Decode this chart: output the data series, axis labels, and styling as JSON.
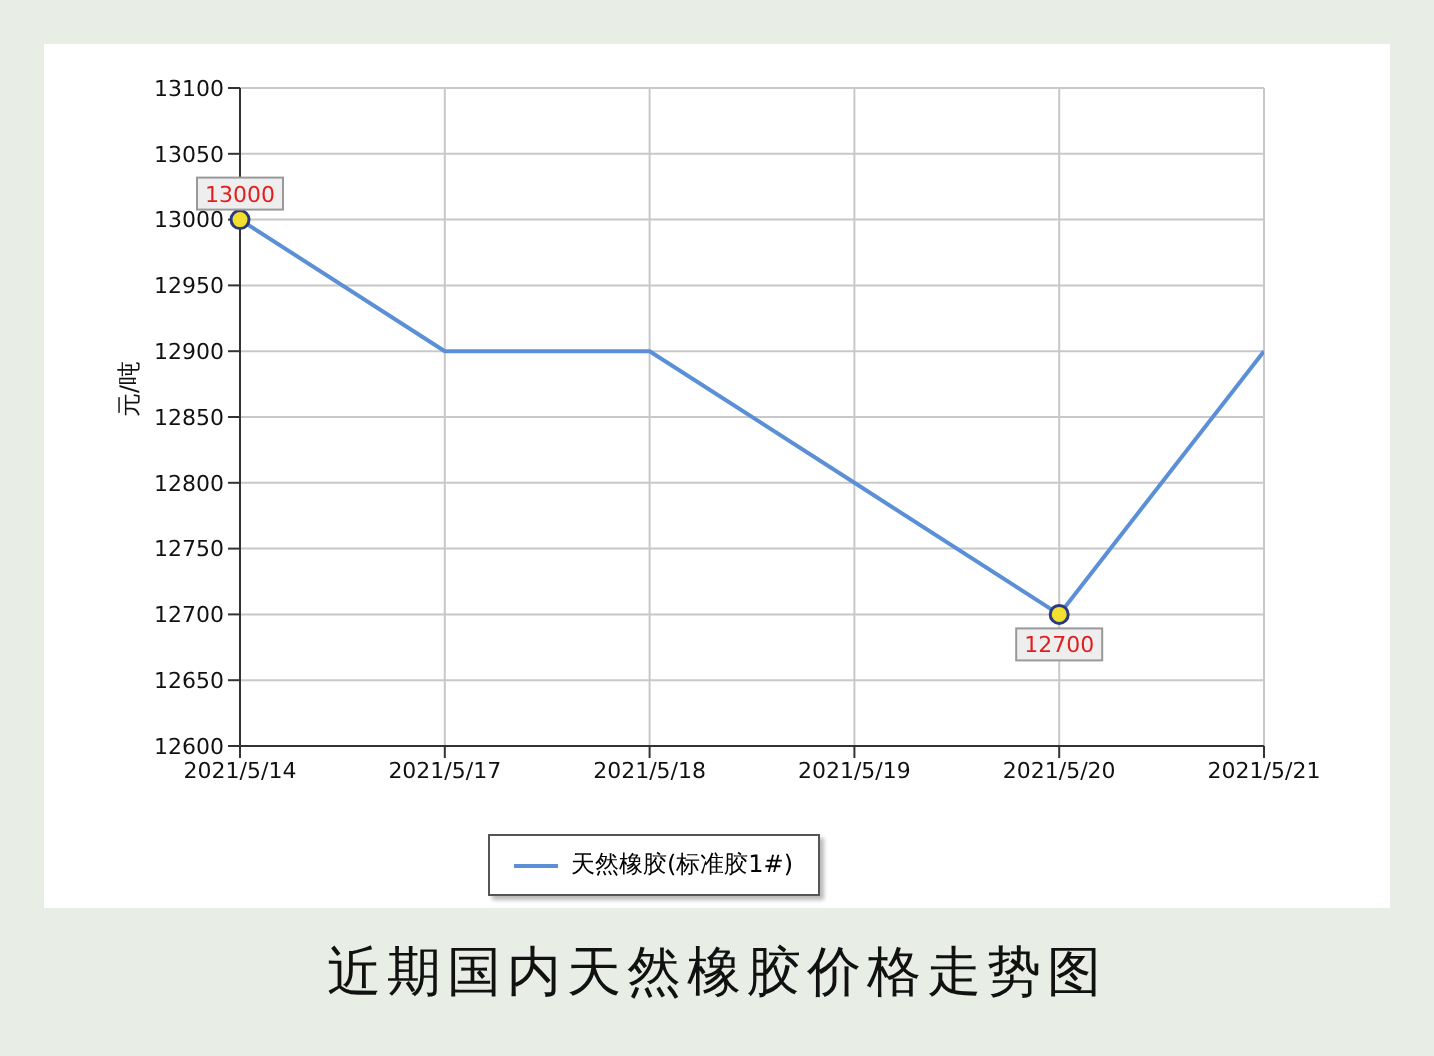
{
  "chart_data": {
    "type": "line",
    "title": "近期国内天然橡胶价格走势图",
    "ylabel": "元/吨",
    "categories": [
      "2021/5/14",
      "2021/5/17",
      "2021/5/18",
      "2021/5/19",
      "2021/5/20",
      "2021/5/21"
    ],
    "series": [
      {
        "name": "天然橡胶(标准胶1#)",
        "color": "#5b8fd6",
        "values": [
          13000,
          12900,
          12900,
          12800,
          12700,
          12900
        ],
        "value_labels": [
          "13000",
          null,
          null,
          null,
          "12700",
          null
        ]
      }
    ],
    "ylim": [
      12600,
      13100
    ],
    "yticks": [
      12600,
      12650,
      12700,
      12750,
      12800,
      12850,
      12900,
      12950,
      13000,
      13050,
      13100
    ],
    "grid": true,
    "legend": "bottom",
    "line_style": "solid"
  }
}
